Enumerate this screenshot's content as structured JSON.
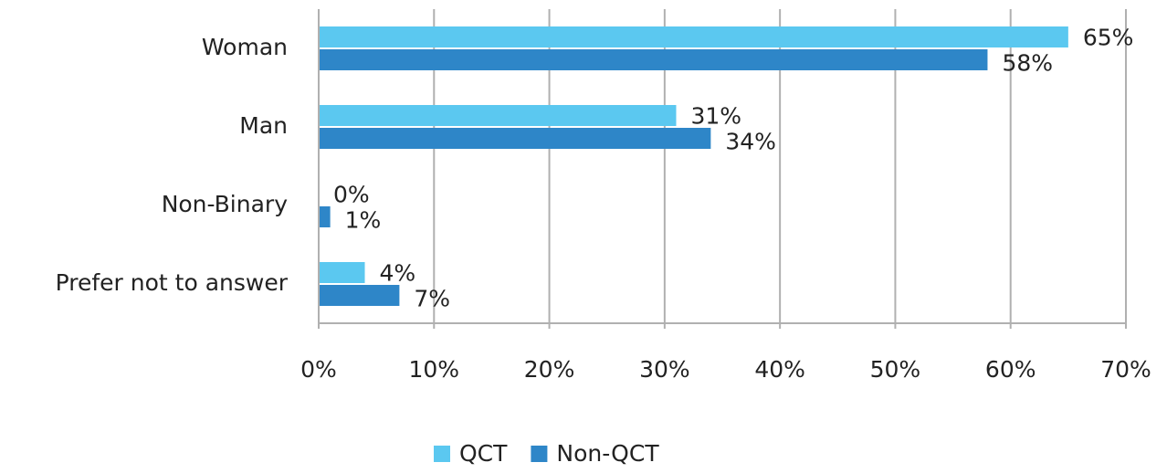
{
  "chart_data": {
    "type": "hbar",
    "categories": [
      "Woman",
      "Man",
      "Non-Binary",
      "Prefer not to answer"
    ],
    "series": [
      {
        "name": "QCT",
        "color": "#5bc8f0",
        "values": [
          65,
          31,
          0,
          4
        ],
        "value_labels": [
          "65%",
          "31%",
          "0%",
          "4%"
        ]
      },
      {
        "name": "Non-QCT",
        "color": "#2e86c8",
        "values": [
          58,
          34,
          1,
          7
        ],
        "value_labels": [
          "58%",
          "34%",
          "1%",
          "7%"
        ]
      }
    ],
    "xlim": [
      0,
      70
    ],
    "xticks": [
      {
        "value": 0,
        "label": "0%"
      },
      {
        "value": 10,
        "label": "10%"
      },
      {
        "value": 20,
        "label": "20%"
      },
      {
        "value": 30,
        "label": "30%"
      },
      {
        "value": 40,
        "label": "40%"
      },
      {
        "value": 50,
        "label": "50%"
      },
      {
        "value": 60,
        "label": "60%"
      },
      {
        "value": 70,
        "label": "70%"
      }
    ],
    "grid": true,
    "legend": "bottom"
  }
}
